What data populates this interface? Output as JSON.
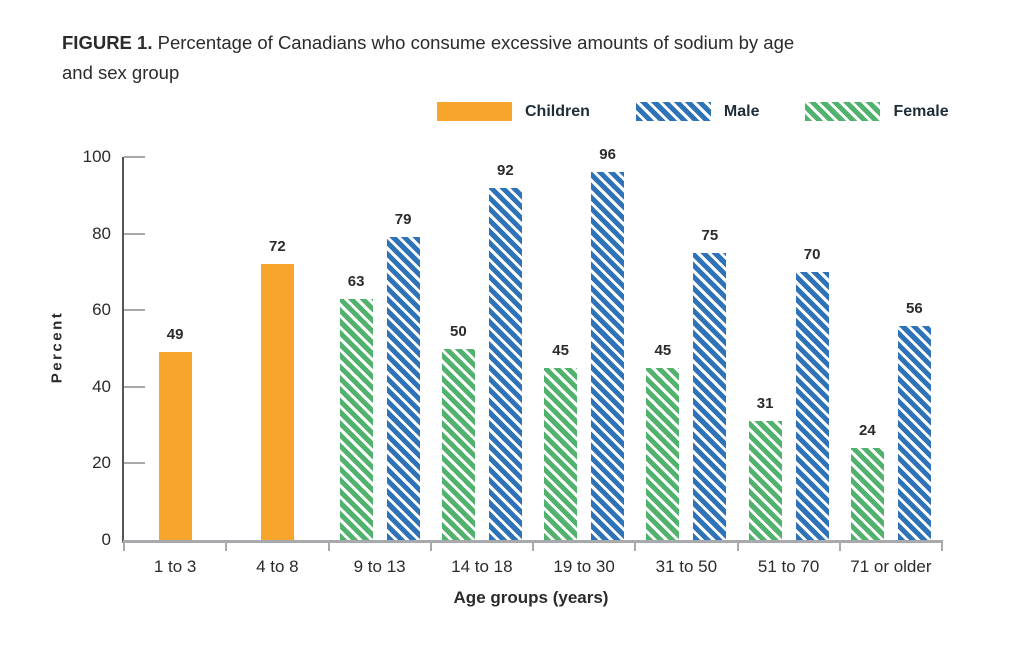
{
  "figure": {
    "title_prefix": "FIGURE 1.",
    "title_line1": "Percentage of Canadians who consume excessive amounts of sodium by age",
    "title_line2": "and sex group"
  },
  "legend": {
    "items": [
      {
        "label": "Children",
        "color": "#f7a52c",
        "pattern": "solid"
      },
      {
        "label": "Male",
        "color": "#2e73b8",
        "pattern": "hatch"
      },
      {
        "label": "Female",
        "color": "#50b26c",
        "pattern": "hatch"
      }
    ]
  },
  "chart_data": {
    "type": "bar",
    "title": "FIGURE 1. Percentage of Canadians who consume excessive amounts of sodium by age and sex group",
    "categories": [
      "1 to 3",
      "4 to 8",
      "9 to 13",
      "14 to 18",
      "19 to 30",
      "31 to 50",
      "51 to 70",
      "71 or older"
    ],
    "series": [
      {
        "name": "Children",
        "color": "#f7a52c",
        "pattern": "solid",
        "values": [
          49,
          72,
          null,
          null,
          null,
          null,
          null,
          null
        ]
      },
      {
        "name": "Female",
        "color": "#50b26c",
        "pattern": "hatch",
        "values": [
          null,
          null,
          63,
          50,
          45,
          45,
          31,
          24
        ]
      },
      {
        "name": "Male",
        "color": "#2e73b8",
        "pattern": "hatch",
        "values": [
          null,
          null,
          79,
          92,
          96,
          75,
          70,
          56
        ]
      }
    ],
    "xlabel": "Age groups (years)",
    "ylabel": "Percent",
    "ylim": [
      0,
      100
    ],
    "yticks": [
      0,
      20,
      40,
      60,
      80,
      100
    ],
    "grid": false,
    "legend_position": "top-center",
    "bar_value_labels_shown": true
  },
  "style_colors": {
    "axis_dark": "#55565a",
    "axis_light": "#a7a9ac",
    "text": "#2b2b2b",
    "legend_text": "#1f2d38",
    "background": "#ffffff"
  }
}
